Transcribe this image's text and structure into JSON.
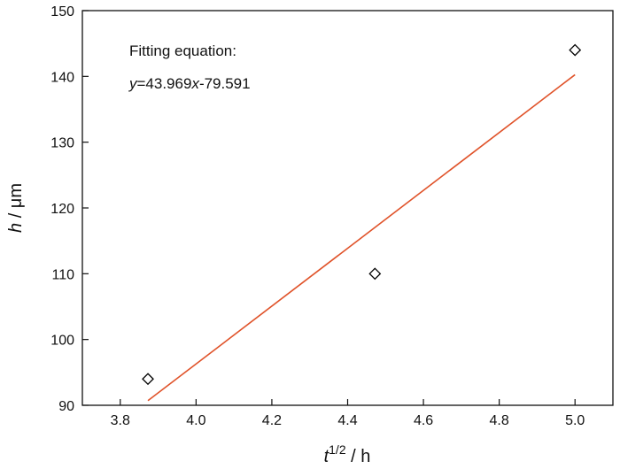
{
  "chart_data": {
    "type": "scatter",
    "title": "",
    "xlabel": {
      "base": "t",
      "sup": "1/2",
      "unit": " / h"
    },
    "ylabel": {
      "var": "h",
      "unit": " / μm"
    },
    "xlim": [
      3.7,
      5.1
    ],
    "ylim": [
      90,
      150
    ],
    "xticks": [
      "3.8",
      "4.0",
      "4.2",
      "4.4",
      "4.6",
      "4.8",
      "5.0"
    ],
    "yticks": [
      "90",
      "100",
      "110",
      "120",
      "130",
      "140",
      "150"
    ],
    "grid": false,
    "series": [
      {
        "marker": "open-diamond",
        "color": "#000000",
        "points": [
          {
            "x": 3.873,
            "y": 94
          },
          {
            "x": 4.472,
            "y": 110
          },
          {
            "x": 5.0,
            "y": 144
          }
        ]
      }
    ],
    "fit_line": {
      "slope": 43.969,
      "intercept": -79.591,
      "x_range": [
        3.873,
        5.0
      ],
      "color": "#e0532a"
    },
    "annotation": {
      "line1": "Fitting equation:",
      "line2_var_y": "y",
      "line2_eq_mid": "=43.969",
      "line2_var_x": "x",
      "line2_eq_end": "-79.591"
    }
  }
}
